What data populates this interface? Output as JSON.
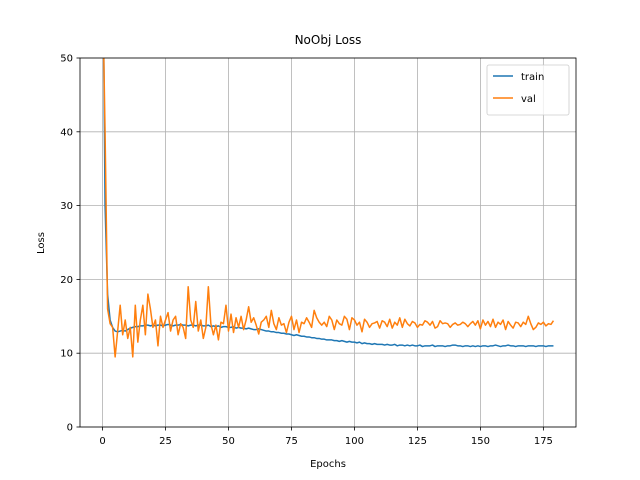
{
  "chart_data": {
    "type": "line",
    "title": "NoObj Loss",
    "x_label": "Epochs",
    "y_label": "Loss",
    "x": [
      0,
      1,
      2,
      3,
      4,
      5,
      6,
      7,
      8,
      9,
      10,
      11,
      12,
      13,
      14,
      15,
      16,
      17,
      18,
      19,
      20,
      21,
      22,
      23,
      24,
      25,
      26,
      27,
      28,
      29,
      30,
      31,
      32,
      33,
      34,
      35,
      36,
      37,
      38,
      39,
      40,
      41,
      42,
      43,
      44,
      45,
      46,
      47,
      48,
      49,
      50,
      51,
      52,
      53,
      54,
      55,
      56,
      57,
      58,
      59,
      60,
      61,
      62,
      63,
      64,
      65,
      66,
      67,
      68,
      69,
      70,
      71,
      72,
      73,
      74,
      75,
      76,
      77,
      78,
      79,
      80,
      81,
      82,
      83,
      84,
      85,
      86,
      87,
      88,
      89,
      90,
      91,
      92,
      93,
      94,
      95,
      96,
      97,
      98,
      99,
      100,
      101,
      102,
      103,
      104,
      105,
      106,
      107,
      108,
      109,
      110,
      111,
      112,
      113,
      114,
      115,
      116,
      117,
      118,
      119,
      120,
      121,
      122,
      123,
      124,
      125,
      126,
      127,
      128,
      129,
      130,
      131,
      132,
      133,
      134,
      135,
      136,
      137,
      138,
      139,
      140,
      141,
      142,
      143,
      144,
      145,
      146,
      147,
      148,
      149,
      150,
      151,
      152,
      153,
      154,
      155,
      156,
      157,
      158,
      159,
      160,
      161,
      162,
      163,
      164,
      165,
      166,
      167,
      168,
      169,
      170,
      171,
      172,
      173,
      174,
      175,
      176,
      177,
      178,
      179
    ],
    "series": [
      {
        "name": "train",
        "color": "#1f77b4",
        "values": [
          70,
          30,
          18,
          14.5,
          13.5,
          13.0,
          12.9,
          13.0,
          13.1,
          13.0,
          13.2,
          13.4,
          13.5,
          13.6,
          13.6,
          13.7,
          13.7,
          13.8,
          13.8,
          13.7,
          13.8,
          13.7,
          13.8,
          13.8,
          13.7,
          13.8,
          13.9,
          13.8,
          13.7,
          13.8,
          13.8,
          13.9,
          13.8,
          13.8,
          13.7,
          13.8,
          13.8,
          13.7,
          13.8,
          13.8,
          13.7,
          13.7,
          13.8,
          13.6,
          13.7,
          13.6,
          13.7,
          13.5,
          13.6,
          13.6,
          13.5,
          13.5,
          13.6,
          13.4,
          13.5,
          13.4,
          13.4,
          13.3,
          13.4,
          13.3,
          13.2,
          13.2,
          13.3,
          13.2,
          13.1,
          13.0,
          13.0,
          12.9,
          12.9,
          12.8,
          12.8,
          12.7,
          12.7,
          12.6,
          12.6,
          12.5,
          12.4,
          12.5,
          12.4,
          12.3,
          12.3,
          12.2,
          12.2,
          12.1,
          12.1,
          12.0,
          12.0,
          11.9,
          11.9,
          11.8,
          11.8,
          11.8,
          11.7,
          11.7,
          11.6,
          11.7,
          11.6,
          11.5,
          11.6,
          11.5,
          11.5,
          11.4,
          11.5,
          11.3,
          11.4,
          11.3,
          11.3,
          11.2,
          11.3,
          11.2,
          11.2,
          11.2,
          11.1,
          11.2,
          11.1,
          11.1,
          11.2,
          11.0,
          11.1,
          11.1,
          11.0,
          11.1,
          11.0,
          11.1,
          11.0,
          11.0,
          11.1,
          10.9,
          11.0,
          11.0,
          11.0,
          11.1,
          10.9,
          11.0,
          11.0,
          11.0,
          10.9,
          11.0,
          11.0,
          11.1,
          11.1,
          11.0,
          11.0,
          10.9,
          11.0,
          11.0,
          10.9,
          11.0,
          10.9,
          11.0,
          10.9,
          11.0,
          11.0,
          10.9,
          11.0,
          11.0,
          11.1,
          11.0,
          10.9,
          11.0,
          11.0,
          11.1,
          11.0,
          11.0,
          10.9,
          11.0,
          11.0,
          11.0,
          10.9,
          11.0,
          11.0,
          11.0,
          10.9,
          11.0,
          11.0,
          11.0,
          10.9,
          11.0,
          11.0,
          11.0
        ]
      },
      {
        "name": "val",
        "color": "#ff7f0e",
        "values": [
          60,
          40,
          16,
          14,
          13.5,
          9.5,
          13,
          16.5,
          12.5,
          14.5,
          12,
          13.5,
          9.5,
          16.5,
          11.5,
          14.5,
          16.5,
          12.5,
          18,
          16,
          13.5,
          14.5,
          11,
          15,
          13.5,
          14.5,
          15.5,
          13,
          14.5,
          15,
          12.5,
          14,
          13.5,
          12,
          19,
          14.5,
          13.5,
          17,
          13,
          14.5,
          12,
          13.5,
          19,
          14,
          12.5,
          13.8,
          11.8,
          14.2,
          14,
          16.5,
          13,
          15.3,
          12.8,
          14.8,
          13.5,
          15,
          13.2,
          14.5,
          16.3,
          14.2,
          14.8,
          13.8,
          12.6,
          14.2,
          14.5,
          15,
          13.5,
          15.8,
          14,
          13.2,
          14.8,
          13.8,
          14,
          12.8,
          14.2,
          15,
          13.2,
          14.5,
          12.8,
          14.2,
          14,
          14.8,
          14.2,
          13.5,
          15.8,
          14.8,
          14.2,
          13.8,
          14.2,
          13.6,
          15,
          14.5,
          13.2,
          14.5,
          14,
          13.8,
          15,
          14.6,
          13.2,
          14.8,
          14.5,
          13.8,
          14.2,
          12.9,
          14.6,
          14.2,
          13.5,
          14,
          14.1,
          14.3,
          13.4,
          14.4,
          14.2,
          13.6,
          14.6,
          13.4,
          14.2,
          13.8,
          14.8,
          13.5,
          14.6,
          14,
          13.7,
          14.3,
          14.1,
          13.5,
          13.9,
          13.8,
          14.4,
          14.2,
          13.8,
          14.3,
          13.4,
          13.6,
          14.4,
          14,
          14.1,
          14,
          13.5,
          13.9,
          14.1,
          13.8,
          13.9,
          14.2,
          14,
          13.6,
          14,
          14.3,
          13.8,
          14.4,
          13.3,
          14.5,
          13.8,
          14.3,
          13.6,
          14.6,
          13.5,
          14.2,
          13.9,
          14.5,
          13.2,
          14.3,
          13.8,
          13.4,
          14.2,
          14.1,
          13.6,
          14.2,
          13.9,
          15,
          14,
          13.2,
          13.5,
          14.1,
          13.9,
          14.2,
          13.7,
          14,
          13.9,
          14.4
        ]
      }
    ],
    "xlim": [
      -8.95,
      187.95
    ],
    "xticks": [
      0,
      25,
      50,
      75,
      100,
      125,
      150,
      175
    ],
    "ylim": [
      0,
      50
    ],
    "yticks": [
      0,
      10,
      20,
      30,
      40,
      50
    ],
    "grid": true,
    "legend": "upper right"
  }
}
